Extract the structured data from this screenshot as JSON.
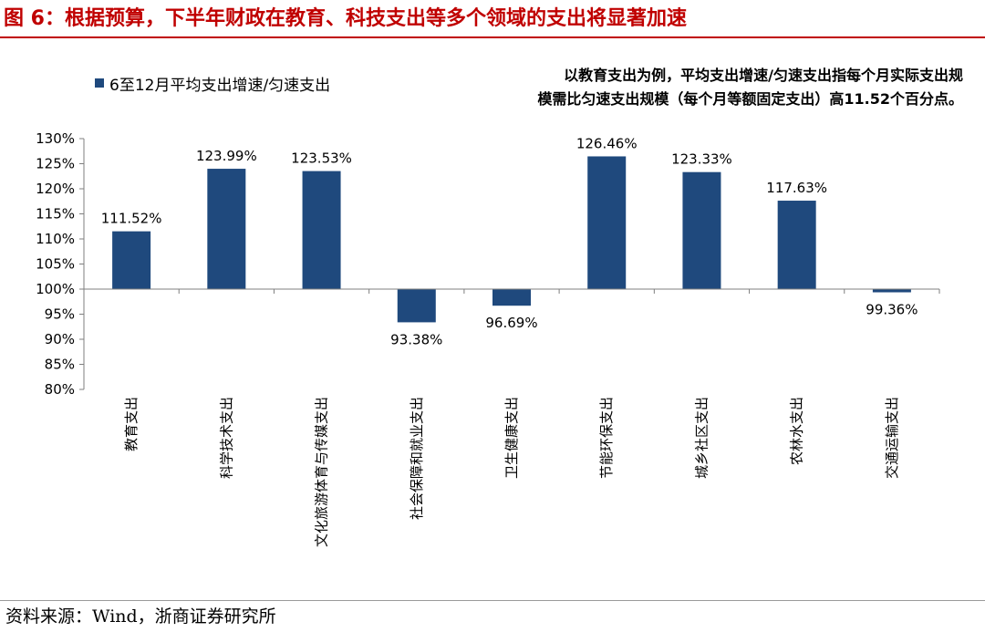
{
  "figure": {
    "title": "图 6：根据预算，下半年财政在教育、科技支出等多个领域的支出将显著加速",
    "note_lines": [
      "以教育支出为例，平均支出增速/匀速支出指每个月实际支出规",
      "模需比匀速支出规模（每个月等额固定支出）高11.52个百分点。"
    ],
    "source": "资料来源：Wind，浙商证券研究所"
  },
  "colors": {
    "title": "#c00000",
    "bar": "#1f497d"
  },
  "chart_data": {
    "type": "bar",
    "categories": [
      "教育支出",
      "科学技术支出",
      "文化旅游体育与传媒支出",
      "社会保障和就业支出",
      "卫生健康支出",
      "节能环保支出",
      "城乡社区支出",
      "农林水支出",
      "交通运输支出"
    ],
    "series": [
      {
        "name": "6至12月平均支出增速/匀速支出",
        "values": [
          111.52,
          123.99,
          123.53,
          93.38,
          96.69,
          126.46,
          123.33,
          117.63,
          99.36
        ],
        "labels": [
          "111.52%",
          "123.99%",
          "123.53%",
          "93.38%",
          "96.69%",
          "126.46%",
          "123.33%",
          "117.63%",
          "99.36%"
        ]
      }
    ],
    "baseline": 100,
    "ylim": [
      80,
      130
    ],
    "yticks": [
      80,
      85,
      90,
      95,
      100,
      105,
      110,
      115,
      120,
      125,
      130
    ],
    "ytick_labels": [
      "80%",
      "85%",
      "90%",
      "95%",
      "100%",
      "105%",
      "110%",
      "115%",
      "120%",
      "125%",
      "130%"
    ],
    "legend_position": "top-left",
    "grid": false
  }
}
